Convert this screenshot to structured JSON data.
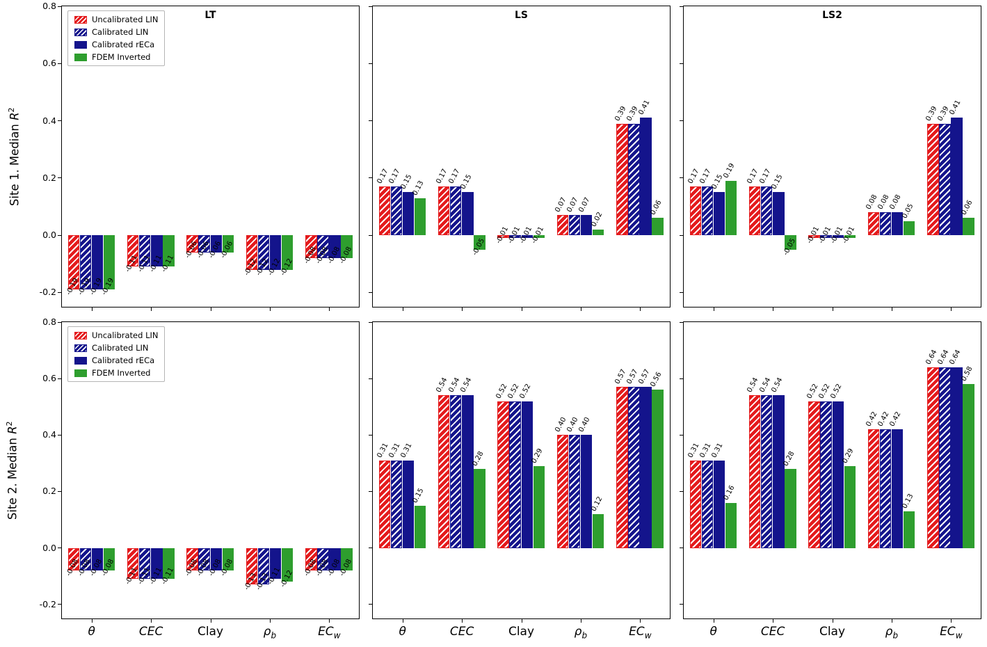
{
  "figure": {
    "rows": [
      {
        "ylabel_prefix": "Site 1. Median "
      },
      {
        "ylabel_prefix": "Site 2. Median "
      }
    ],
    "r_var": "R",
    "r_sup": "2",
    "yticks": [
      0.8,
      0.6,
      0.4,
      0.2,
      0.0,
      -0.2
    ],
    "ylim": [
      -0.25,
      0.8
    ],
    "legend": [
      "Uncalibrated LIN",
      "Calibrated LIN",
      "Calibrated rECa",
      "FDEM Inverted"
    ],
    "colors": {
      "red": "#e41a1c",
      "navy": "#14148c",
      "green": "#2e9e2e"
    },
    "categories": [
      {
        "text": "θ",
        "sub": "",
        "italic": true
      },
      {
        "text": "CEC",
        "sub": "",
        "italic": true
      },
      {
        "text": "Clay",
        "sub": "",
        "italic": false
      },
      {
        "text": "ρ",
        "sub": "b",
        "italic": true
      },
      {
        "text": "EC",
        "sub": "w",
        "italic": true
      }
    ]
  },
  "chart_data": [
    {
      "type": "bar",
      "title": "LT",
      "site": "Site 1",
      "categories": [
        "θ",
        "CEC",
        "Clay",
        "ρ_b",
        "EC_w"
      ],
      "ylim": [
        -0.25,
        0.8
      ],
      "series": [
        {
          "name": "Uncalibrated LIN",
          "values": [
            -0.19,
            -0.11,
            -0.06,
            -0.12,
            -0.08
          ]
        },
        {
          "name": "Calibrated LIN",
          "values": [
            -0.19,
            -0.11,
            -0.06,
            -0.12,
            -0.08
          ]
        },
        {
          "name": "Calibrated rECa",
          "values": [
            -0.19,
            -0.11,
            -0.06,
            -0.12,
            -0.08
          ]
        },
        {
          "name": "FDEM Inverted",
          "values": [
            -0.19,
            -0.11,
            -0.06,
            -0.12,
            -0.08
          ]
        }
      ]
    },
    {
      "type": "bar",
      "title": "LS",
      "site": "Site 1",
      "categories": [
        "θ",
        "CEC",
        "Clay",
        "ρ_b",
        "EC_w"
      ],
      "ylim": [
        -0.25,
        0.8
      ],
      "series": [
        {
          "name": "Uncalibrated LIN",
          "values": [
            0.17,
            0.17,
            -0.01,
            0.07,
            0.39
          ]
        },
        {
          "name": "Calibrated LIN",
          "values": [
            0.17,
            0.17,
            -0.01,
            0.07,
            0.39
          ]
        },
        {
          "name": "Calibrated rECa",
          "values": [
            0.15,
            0.15,
            -0.01,
            0.07,
            0.41
          ]
        },
        {
          "name": "FDEM Inverted",
          "values": [
            0.13,
            -0.05,
            -0.01,
            0.02,
            0.06
          ]
        }
      ]
    },
    {
      "type": "bar",
      "title": "LS2",
      "site": "Site 1",
      "categories": [
        "θ",
        "CEC",
        "Clay",
        "ρ_b",
        "EC_w"
      ],
      "ylim": [
        -0.25,
        0.8
      ],
      "series": [
        {
          "name": "Uncalibrated LIN",
          "values": [
            0.17,
            0.17,
            -0.01,
            0.08,
            0.39
          ]
        },
        {
          "name": "Calibrated LIN",
          "values": [
            0.17,
            0.17,
            -0.01,
            0.08,
            0.39
          ]
        },
        {
          "name": "Calibrated rECa",
          "values": [
            0.15,
            0.15,
            -0.01,
            0.08,
            0.41
          ]
        },
        {
          "name": "FDEM Inverted",
          "values": [
            0.19,
            -0.05,
            -0.01,
            0.05,
            0.06
          ]
        }
      ]
    },
    {
      "type": "bar",
      "title": "LT",
      "site": "Site 2",
      "categories": [
        "θ",
        "CEC",
        "Clay",
        "ρ_b",
        "EC_w"
      ],
      "ylim": [
        -0.25,
        0.8
      ],
      "series": [
        {
          "name": "Uncalibrated LIN",
          "values": [
            -0.08,
            -0.11,
            -0.08,
            -0.13,
            -0.08
          ]
        },
        {
          "name": "Calibrated LIN",
          "values": [
            -0.08,
            -0.11,
            -0.08,
            -0.13,
            -0.08
          ]
        },
        {
          "name": "Calibrated rECa",
          "values": [
            -0.08,
            -0.11,
            -0.08,
            -0.11,
            -0.08
          ]
        },
        {
          "name": "FDEM Inverted",
          "values": [
            -0.08,
            -0.11,
            -0.08,
            -0.12,
            -0.08
          ]
        }
      ]
    },
    {
      "type": "bar",
      "title": "LS",
      "site": "Site 2",
      "categories": [
        "θ",
        "CEC",
        "Clay",
        "ρ_b",
        "EC_w"
      ],
      "ylim": [
        -0.25,
        0.8
      ],
      "series": [
        {
          "name": "Uncalibrated LIN",
          "values": [
            0.31,
            0.54,
            0.52,
            0.4,
            0.57
          ]
        },
        {
          "name": "Calibrated LIN",
          "values": [
            0.31,
            0.54,
            0.52,
            0.4,
            0.57
          ]
        },
        {
          "name": "Calibrated rECa",
          "values": [
            0.31,
            0.54,
            0.52,
            0.4,
            0.57
          ]
        },
        {
          "name": "FDEM Inverted",
          "values": [
            0.15,
            0.28,
            0.29,
            0.12,
            0.56
          ]
        }
      ]
    },
    {
      "type": "bar",
      "title": "LS2",
      "site": "Site 2",
      "categories": [
        "θ",
        "CEC",
        "Clay",
        "ρ_b",
        "EC_w"
      ],
      "ylim": [
        -0.25,
        0.8
      ],
      "series": [
        {
          "name": "Uncalibrated LIN",
          "values": [
            0.31,
            0.54,
            0.52,
            0.42,
            0.64
          ]
        },
        {
          "name": "Calibrated LIN",
          "values": [
            0.31,
            0.54,
            0.52,
            0.42,
            0.64
          ]
        },
        {
          "name": "Calibrated rECa",
          "values": [
            0.31,
            0.54,
            0.52,
            0.42,
            0.64
          ]
        },
        {
          "name": "FDEM Inverted",
          "values": [
            0.16,
            0.28,
            0.29,
            0.13,
            0.58
          ]
        }
      ]
    }
  ]
}
